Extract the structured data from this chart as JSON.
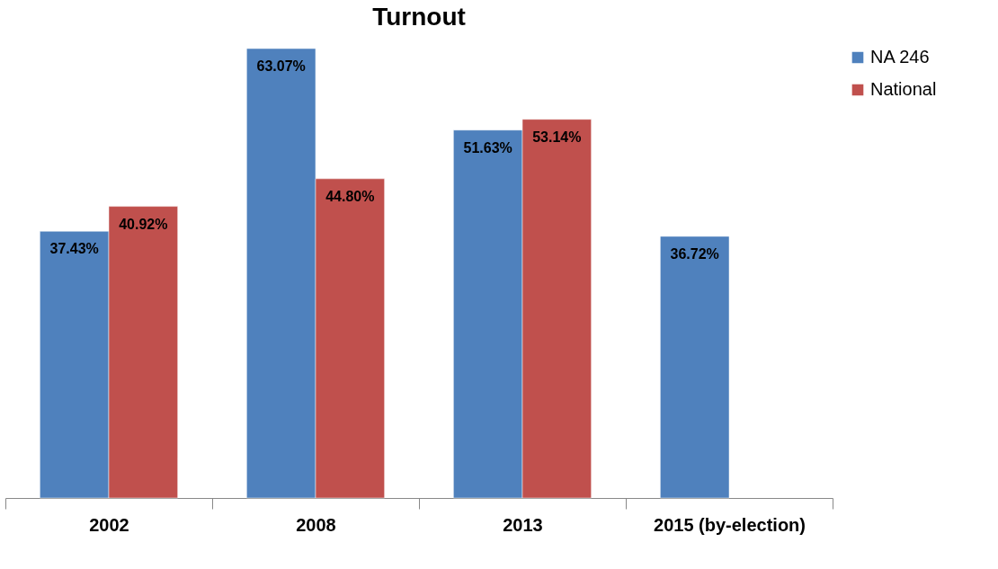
{
  "chart_data": {
    "type": "bar",
    "title": "Turnout",
    "categories": [
      "2002",
      "2008",
      "2013",
      "2015 (by-election)"
    ],
    "series": [
      {
        "name": "NA 246",
        "color": "#4f81bd",
        "values": [
          37.43,
          63.07,
          51.63,
          36.72
        ],
        "value_labels": [
          "37.43%",
          "63.07%",
          "51.63%",
          "36.72%"
        ]
      },
      {
        "name": "National",
        "color": "#c0504d",
        "values": [
          40.92,
          44.8,
          53.14,
          null
        ],
        "value_labels": [
          "40.92%",
          "44.80%",
          "53.14%",
          null
        ]
      }
    ],
    "tick_labels": "x",
    "grid": false,
    "legend": "right"
  }
}
